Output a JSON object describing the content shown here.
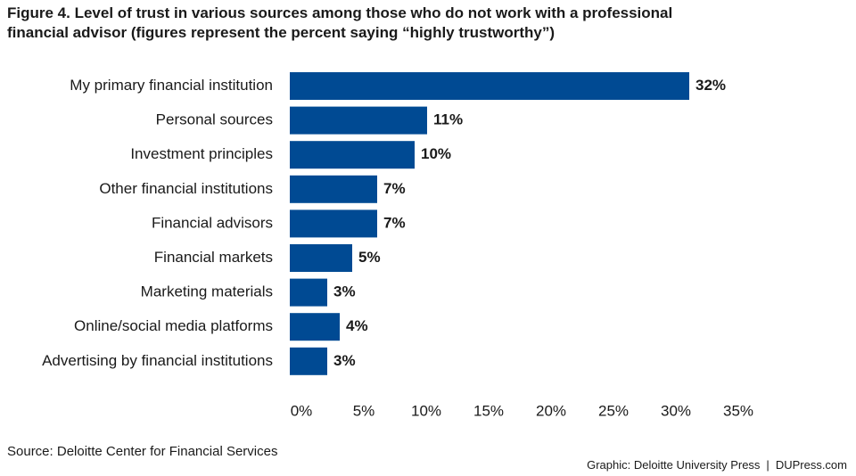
{
  "title_lines": [
    "Figure 4. Level of trust in various sources among those who do not work with a professional",
    "financial advisor (figures represent the percent saying “highly trustworthy”)"
  ],
  "source": "Source: Deloitte Center for Financial Services",
  "credit": {
    "left": "Graphic: Deloitte University Press",
    "separator": "|",
    "right": "DUPress.com"
  },
  "chart_data": {
    "type": "bar",
    "orientation": "horizontal",
    "categories": [
      "My primary financial institution",
      "Personal sources",
      "Investment principles",
      "Other financial institutions",
      "Financial advisors",
      "Financial markets",
      "Marketing materials",
      "Online/social media platforms",
      "Advertising by financial institutions"
    ],
    "values": [
      32,
      11,
      10,
      7,
      7,
      5,
      3,
      4,
      3
    ],
    "value_labels": [
      "32%",
      "11%",
      "10%",
      "7%",
      "7%",
      "5%",
      "3%",
      "4%",
      "3%"
    ],
    "x_ticks": [
      "0%",
      "5%",
      "10%",
      "15%",
      "20%",
      "25%",
      "30%",
      "35%"
    ],
    "xlim": [
      0,
      35
    ],
    "bar_color": "#004A93",
    "grid": false
  }
}
